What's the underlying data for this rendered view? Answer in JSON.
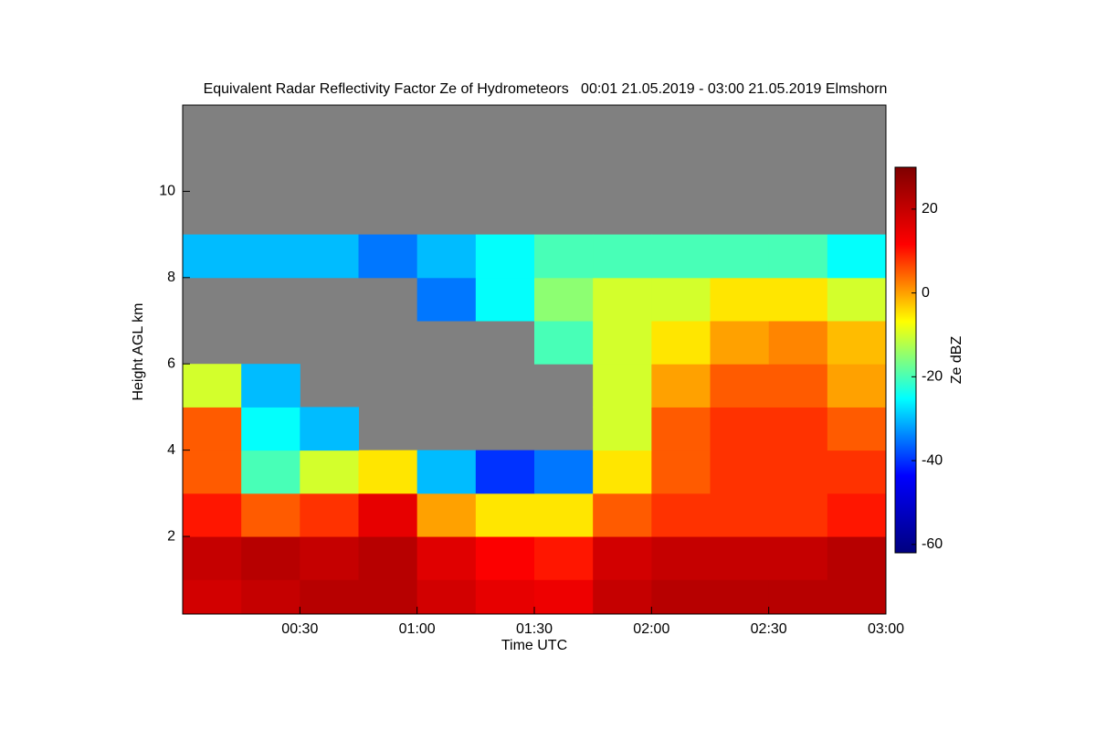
{
  "chart_data": {
    "type": "heatmap",
    "title": "Equivalent Radar Reflectivity Factor Ze of Hydrometeors   00:01 21.05.2019 - 03:00 21.05.2019 Elmshorn",
    "xlabel": "Time UTC",
    "ylabel": "Height AGL km",
    "colorbar_label": "Ze dBZ",
    "xbins": [
      0,
      15,
      30,
      45,
      60,
      75,
      90,
      105,
      120,
      135,
      150,
      165,
      180
    ],
    "ybins": [
      0.2,
      1,
      2,
      3,
      4,
      5,
      6,
      7,
      8,
      9,
      10,
      11,
      12
    ],
    "values": [
      [
        18,
        20,
        22,
        22,
        18,
        15,
        14,
        20,
        22,
        22,
        22,
        22
      ],
      [
        20,
        22,
        20,
        22,
        16,
        12,
        10,
        18,
        20,
        20,
        20,
        22
      ],
      [
        10,
        5,
        8,
        15,
        0,
        -5,
        -5,
        5,
        8,
        8,
        8,
        10
      ],
      [
        5,
        -20,
        -10,
        -5,
        -30,
        -40,
        -35,
        -5,
        5,
        8,
        8,
        8
      ],
      [
        5,
        -25,
        -30,
        null,
        null,
        null,
        null,
        -10,
        5,
        8,
        8,
        5
      ],
      [
        -10,
        -30,
        null,
        null,
        null,
        null,
        null,
        -10,
        0,
        5,
        5,
        0
      ],
      [
        null,
        null,
        null,
        null,
        null,
        null,
        -20,
        -10,
        -5,
        0,
        2,
        -2
      ],
      [
        null,
        null,
        null,
        null,
        -35,
        -25,
        -15,
        -10,
        -10,
        -5,
        -5,
        -10
      ],
      [
        -30,
        -30,
        -30,
        -35,
        -30,
        -25,
        -20,
        -20,
        -20,
        -20,
        -20,
        -25
      ],
      [
        null,
        null,
        null,
        null,
        null,
        null,
        null,
        null,
        null,
        null,
        null,
        null
      ],
      [
        null,
        null,
        null,
        null,
        null,
        null,
        null,
        null,
        null,
        null,
        null,
        null
      ],
      [
        null,
        null,
        null,
        null,
        null,
        null,
        null,
        null,
        null,
        null,
        null,
        null
      ]
    ],
    "xlim": [
      0,
      180
    ],
    "xticks": [
      {
        "value": 30,
        "label": "00:30"
      },
      {
        "value": 60,
        "label": "01:00"
      },
      {
        "value": 90,
        "label": "01:30"
      },
      {
        "value": 120,
        "label": "02:00"
      },
      {
        "value": 150,
        "label": "02:30"
      },
      {
        "value": 180,
        "label": "03:00"
      }
    ],
    "ylim": [
      0.2,
      12
    ],
    "yticks": [
      2,
      4,
      6,
      8,
      10
    ],
    "clim": [
      -62,
      30
    ],
    "cticks": [
      -60,
      -40,
      -20,
      0,
      20
    ],
    "colormap": [
      "#00007f",
      "#0000ff",
      "#00ffff",
      "#ffff00",
      "#ff0000",
      "#7f0000"
    ],
    "missing_color": "#808080"
  }
}
